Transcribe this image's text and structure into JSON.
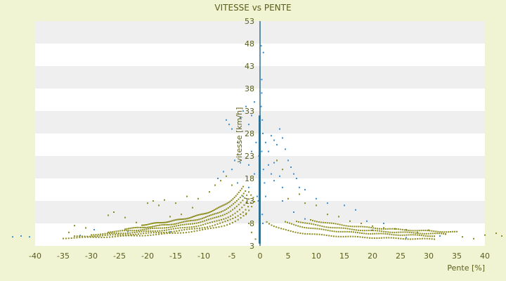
{
  "chart_data": {
    "type": "scatter",
    "title": "VITESSE vs PENTE",
    "xlabel": "Pente [%]",
    "ylabel": "vitesse [km/h]",
    "xlim": [
      -40,
      40
    ],
    "ylim": [
      3,
      53
    ],
    "xticks": [
      -40,
      -35,
      -30,
      -25,
      -20,
      -15,
      -10,
      -5,
      0,
      5,
      10,
      15,
      20,
      25,
      30,
      35,
      40
    ],
    "yticks": [
      3,
      8,
      13,
      18,
      23,
      28,
      33,
      38,
      43,
      48,
      53
    ],
    "grid": "horizontal-bands",
    "legend": "none",
    "colors": {
      "background": "#f1f4d2",
      "band_light": "#ffffff",
      "band_dark": "#efefef",
      "series_blue": "#3a8fd6",
      "series_olive": "#8c8c1c",
      "axis": "#2f6f8f"
    },
    "series": [
      {
        "color": "#3a8fd6",
        "points": [
          [
            -44,
            5.0
          ],
          [
            -42.5,
            5.2
          ],
          [
            -41,
            5.0
          ],
          [
            -32,
            5.3
          ],
          [
            -29.5,
            6.6
          ],
          [
            -23.5,
            6.2
          ],
          [
            -16,
            6.1
          ],
          [
            -6,
            31.0
          ],
          [
            -5.5,
            30.0
          ],
          [
            -5,
            29.0
          ],
          [
            -4,
            26.0
          ],
          [
            -3.5,
            31.5
          ],
          [
            -3,
            33.0
          ],
          [
            -2.5,
            34.0
          ],
          [
            -2,
            30.0
          ],
          [
            -1.5,
            32.0
          ],
          [
            -1,
            35.0
          ],
          [
            -4.5,
            22.0
          ],
          [
            -5,
            20.0
          ],
          [
            -6.5,
            19.5
          ],
          [
            -7.5,
            18.0
          ],
          [
            -2,
            21.0
          ],
          [
            -1.5,
            24.0
          ],
          [
            -3.5,
            21.5
          ],
          [
            -4,
            17.0
          ],
          [
            -3,
            14.0
          ],
          [
            -2,
            16.0
          ],
          [
            -1,
            19.0
          ],
          [
            -0.7,
            26.0
          ],
          [
            -0.5,
            14.0
          ],
          [
            -0.3,
            13.0
          ],
          [
            -0.2,
            23.0
          ],
          [
            -0.1,
            16.0
          ],
          [
            0.3,
            40.0
          ],
          [
            0.3,
            37.0
          ],
          [
            0.2,
            34.0
          ],
          [
            0.4,
            31.0
          ],
          [
            0.5,
            28.0
          ],
          [
            0.3,
            24.0
          ],
          [
            0.6,
            20.0
          ],
          [
            0.8,
            17.0
          ],
          [
            1.0,
            14.0
          ],
          [
            0.4,
            10.0
          ],
          [
            0.5,
            8.0
          ],
          [
            0.6,
            46.0
          ],
          [
            0.2,
            47.5
          ],
          [
            1.0,
            26.0
          ],
          [
            1.5,
            24.0
          ],
          [
            2.0,
            27.5
          ],
          [
            2.5,
            26.5
          ],
          [
            3.0,
            25.5
          ],
          [
            3.5,
            29.0
          ],
          [
            4.0,
            27.0
          ],
          [
            4.5,
            24.5
          ],
          [
            5.0,
            22.0
          ],
          [
            5.5,
            20.5
          ],
          [
            6.0,
            19.0
          ],
          [
            6.5,
            18.0
          ],
          [
            2.0,
            19.0
          ],
          [
            2.5,
            17.5
          ],
          [
            3.5,
            18.5
          ],
          [
            4.0,
            16.0
          ],
          [
            7.0,
            16.0
          ],
          [
            8.0,
            15.5
          ],
          [
            10.0,
            13.5
          ],
          [
            12.0,
            12.5
          ],
          [
            15.0,
            12.0
          ],
          [
            17.0,
            11.0
          ],
          [
            19.0,
            8.5
          ],
          [
            22.0,
            8.0
          ],
          [
            4.0,
            13.0
          ],
          [
            6.0,
            10.5
          ],
          [
            8.0,
            9.0
          ],
          [
            2.5,
            21.5
          ],
          [
            3.0,
            22.0
          ],
          [
            1.5,
            21.0
          ],
          [
            20.0,
            6.5
          ],
          [
            26.0,
            4.8
          ],
          [
            32.0,
            5.2
          ]
        ]
      },
      {
        "color": "#8c8c1c",
        "curves": [
          {
            "side": "left",
            "k": 57,
            "p": 0.62,
            "xmin": 1.0,
            "xmax": 35.0
          },
          {
            "side": "left",
            "k": 66,
            "p": 0.62,
            "xmin": 1.2,
            "xmax": 33.0
          },
          {
            "side": "left",
            "k": 76,
            "p": 0.62,
            "xmin": 1.6,
            "xmax": 30.0
          },
          {
            "side": "left",
            "k": 88,
            "p": 0.62,
            "xmin": 2.0,
            "xmax": 27.0
          },
          {
            "side": "left",
            "k": 100,
            "p": 0.62,
            "xmin": 2.6,
            "xmax": 24.0
          },
          {
            "side": "left",
            "k": 114,
            "p": 0.62,
            "xmin": 3.0,
            "xmax": 21.0
          },
          {
            "side": "right",
            "k": 30,
            "p": 0.5,
            "xmin": 1.2,
            "xmax": 31.0
          },
          {
            "side": "right",
            "k": 45,
            "p": 0.5,
            "xmin": 4.5,
            "xmax": 31.0
          },
          {
            "side": "right",
            "k": 55,
            "p": 0.5,
            "xmin": 6.5,
            "xmax": 33.0
          },
          {
            "side": "right",
            "k": 66,
            "p": 0.5,
            "xmin": 9.0,
            "xmax": 35.0
          }
        ],
        "points": [
          [
            -34,
            6.0
          ],
          [
            -33,
            7.5
          ],
          [
            -31,
            7.0
          ],
          [
            -27,
            9.8
          ],
          [
            -26,
            10.5
          ],
          [
            -24,
            9.3
          ],
          [
            -22,
            8.2
          ],
          [
            -20,
            12.5
          ],
          [
            -19,
            13.0
          ],
          [
            -18,
            12.0
          ],
          [
            -17,
            13.2
          ],
          [
            -16,
            9.5
          ],
          [
            -15,
            12.5
          ],
          [
            -14,
            10.0
          ],
          [
            -13,
            14.0
          ],
          [
            -12,
            11.5
          ],
          [
            -11,
            13.5
          ],
          [
            -9,
            15.0
          ],
          [
            -8,
            16.5
          ],
          [
            -7,
            17.5
          ],
          [
            -6,
            18.5
          ],
          [
            -5,
            16.5
          ],
          [
            -2.5,
            10.0
          ],
          [
            -2,
            8.0
          ],
          [
            -1.5,
            6.0
          ],
          [
            -0.8,
            4.5
          ],
          [
            5,
            13.5
          ],
          [
            7,
            14.5
          ],
          [
            8,
            12.5
          ],
          [
            10,
            12.0
          ],
          [
            12,
            10.0
          ],
          [
            14,
            9.5
          ],
          [
            16,
            8.5
          ],
          [
            18,
            8.0
          ],
          [
            20,
            7.4
          ],
          [
            22,
            7.0
          ],
          [
            24,
            6.8
          ],
          [
            26,
            6.6
          ],
          [
            28,
            6.0
          ],
          [
            30,
            6.5
          ],
          [
            33,
            5.6
          ],
          [
            36,
            5.0
          ],
          [
            38,
            4.6
          ],
          [
            40,
            5.4
          ],
          [
            42,
            5.8
          ],
          [
            43,
            5.2
          ],
          [
            3,
            22.0
          ],
          [
            4,
            20.0
          ]
        ]
      }
    ]
  }
}
